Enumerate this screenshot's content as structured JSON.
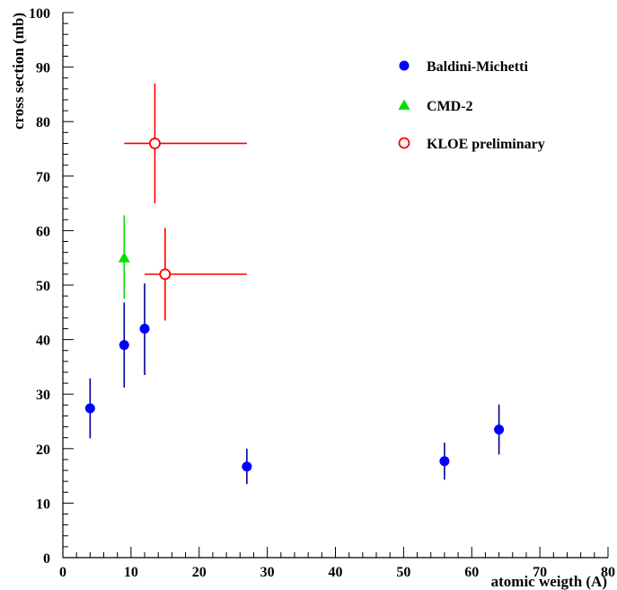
{
  "chart_data": {
    "type": "scatter",
    "title": "",
    "xlabel": "atomic weigth (A)",
    "ylabel": "cross section (mb)",
    "xlim": [
      0,
      80
    ],
    "ylim": [
      0,
      100
    ],
    "x_ticks": [
      0,
      10,
      20,
      30,
      40,
      50,
      60,
      70,
      80
    ],
    "y_ticks": [
      0,
      10,
      20,
      30,
      40,
      50,
      60,
      70,
      80,
      90,
      100
    ],
    "grid": false,
    "legend_position": "top-right",
    "series": [
      {
        "name": "Baldini-Michetti",
        "marker": "filled-circle",
        "color": "#0000ff",
        "error_color": "#000099",
        "points": [
          {
            "x": 4,
            "y": 27.4,
            "yerr_low": 5.5,
            "yerr_high": 5.5
          },
          {
            "x": 9,
            "y": 39,
            "yerr_low": 7.8,
            "yerr_high": 7.8
          },
          {
            "x": 12,
            "y": 42,
            "yerr_low": 8.5,
            "yerr_high": 8.3
          },
          {
            "x": 27,
            "y": 16.7,
            "yerr_low": 3.2,
            "yerr_high": 3.3
          },
          {
            "x": 56,
            "y": 17.7,
            "yerr_low": 3.4,
            "yerr_high": 3.4
          },
          {
            "x": 64,
            "y": 23.5,
            "yerr_low": 4.6,
            "yerr_high": 4.6
          }
        ]
      },
      {
        "name": "CMD-2",
        "marker": "filled-triangle",
        "color": "#00e000",
        "error_color": "#00e000",
        "points": [
          {
            "x": 9,
            "y": 55,
            "yerr_low": 7.5,
            "yerr_high": 7.8
          }
        ]
      },
      {
        "name": "KLOE preliminary",
        "marker": "open-circle",
        "color": "#ff0000",
        "error_color": "#ff0000",
        "points": [
          {
            "x": 13.5,
            "y": 76,
            "yerr_low": 11,
            "yerr_high": 11,
            "xerr_low": 4.5,
            "xerr_high": 13.5
          },
          {
            "x": 15,
            "y": 52,
            "yerr_low": 8.5,
            "yerr_high": 8.5,
            "xerr_low": 3,
            "xerr_high": 12
          }
        ]
      }
    ]
  }
}
